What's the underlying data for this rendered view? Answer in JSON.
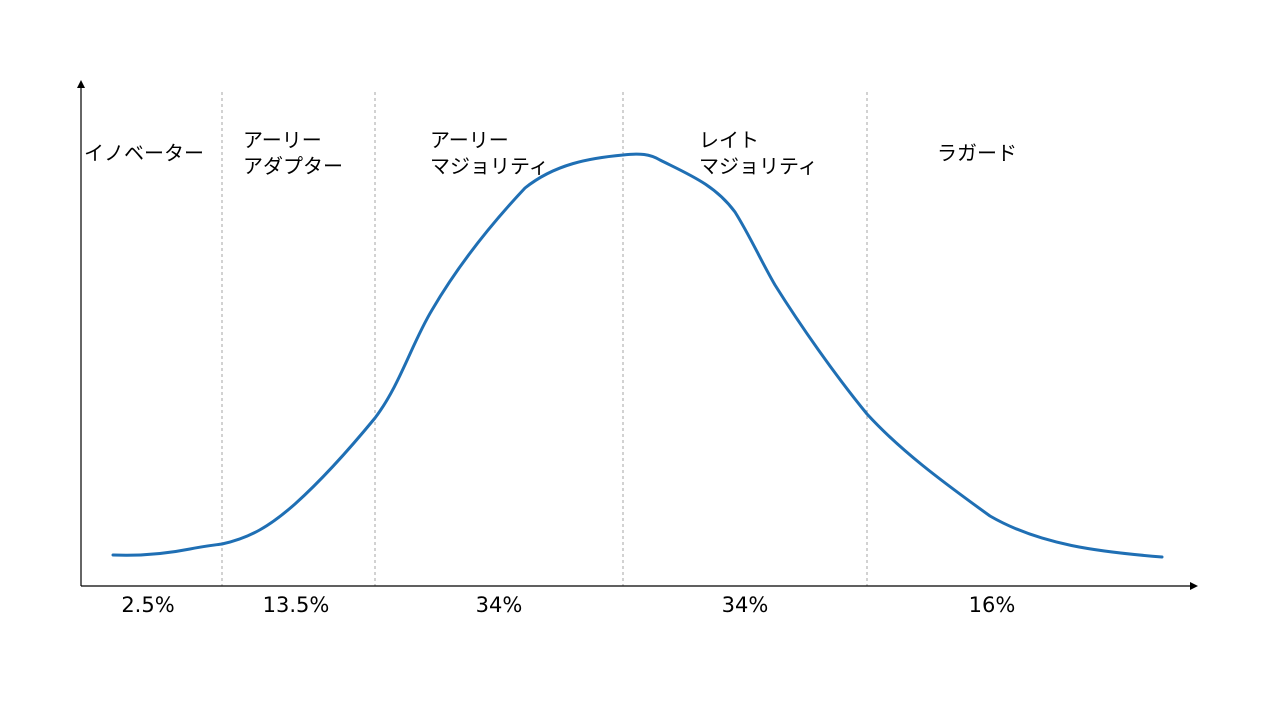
{
  "colors": {
    "curve": "#1f6fb4",
    "axis": "#000000",
    "divider": "#a6a6a6"
  },
  "segments": [
    {
      "lines": [
        "イノベーター"
      ],
      "percent": "2.5%"
    },
    {
      "lines": [
        "アーリー",
        "アダプター"
      ],
      "percent": "13.5%"
    },
    {
      "lines": [
        "アーリー",
        "マジョリティ"
      ],
      "percent": "34%"
    },
    {
      "lines": [
        "レイト",
        "マジョリティ"
      ],
      "percent": "34%"
    },
    {
      "lines": [
        "ラガード"
      ],
      "percent": "16%"
    }
  ]
}
